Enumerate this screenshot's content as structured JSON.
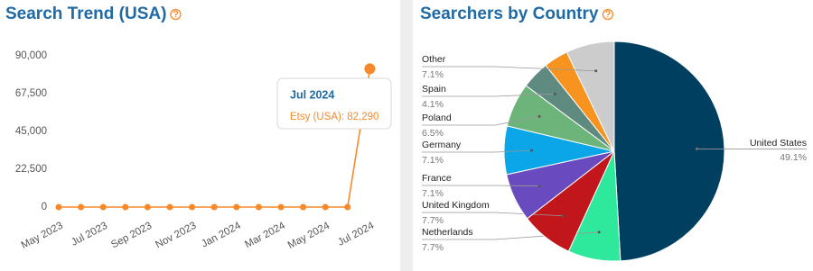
{
  "chart_data": [
    {
      "type": "line",
      "title": "Search Trend (USA)",
      "categories": [
        "May 2023",
        null,
        "Jul 2023",
        null,
        "Sep 2023",
        null,
        "Nov 2023",
        null,
        "Jan 2024",
        null,
        "Mar 2024",
        null,
        "May 2024",
        null,
        "Jul 2024"
      ],
      "series": [
        {
          "name": "Etsy (USA)",
          "color": "#f7892b",
          "values": [
            0,
            0,
            0,
            0,
            0,
            0,
            0,
            0,
            0,
            0,
            0,
            0,
            0,
            0,
            82290
          ]
        }
      ],
      "ylim": [
        0,
        90000
      ],
      "yticks": [
        0,
        {
          "value": 22500,
          "label": "22,500"
        },
        {
          "value": 45000,
          "label": "45,000"
        },
        {
          "value": 67500,
          "label": "67,500"
        },
        {
          "value": 90000,
          "label": "90,000"
        }
      ],
      "grid": false,
      "tooltip": {
        "title": "Jul 2024",
        "text": "Etsy (USA): 82,290"
      }
    },
    {
      "type": "pie",
      "title": "Searchers by Country",
      "categories": [
        "United States",
        "Netherlands",
        "United Kingdom",
        "France",
        "Germany",
        "Poland",
        "Spain",
        null,
        "Other"
      ],
      "values": [
        49.1,
        7.7,
        7.7,
        7.1,
        7.1,
        6.5,
        4.1,
        3.6,
        7.1
      ],
      "value_labels": [
        "49.1%",
        "7.7%",
        "7.7%",
        "7.1%",
        "7.1%",
        "6.5%",
        "4.1%",
        null,
        "7.1%"
      ],
      "colors": [
        "#003f5f",
        "#2ee89b",
        "#c0161c",
        "#6a4bbf",
        "#0ba6e8",
        "#6db47b",
        "#5f8a80",
        "#f7931e",
        "#cccccc"
      ]
    }
  ]
}
